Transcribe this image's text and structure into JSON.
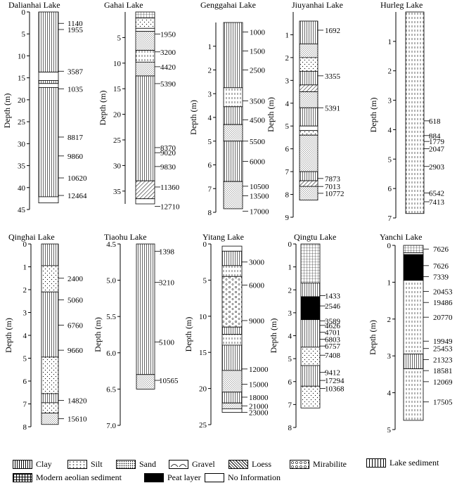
{
  "legend": [
    {
      "label": "Clay",
      "pattern": "clay"
    },
    {
      "label": "Silt",
      "pattern": "silt"
    },
    {
      "label": "Sand",
      "pattern": "sand"
    },
    {
      "label": "Gravel",
      "pattern": "gravel"
    },
    {
      "label": "Loess",
      "pattern": "loess"
    },
    {
      "label": "Mirabilite",
      "pattern": "mira"
    },
    {
      "label": "Lake sediment",
      "pattern": "lake"
    },
    {
      "label": "Modern aeolian sediment",
      "pattern": "aeol"
    },
    {
      "label": "Peat layer",
      "pattern": "peat"
    },
    {
      "label": "No Information",
      "pattern": "none"
    }
  ],
  "y_label": "Depth (m)",
  "cores": [
    {
      "name": "Dalianhai Lake",
      "ymin": 0,
      "ymax": 45,
      "ticks": [
        0,
        5,
        10,
        15,
        20,
        25,
        30,
        35,
        40,
        45
      ],
      "layers": [
        [
          0,
          13.7,
          "clay"
        ],
        [
          13.7,
          15.6,
          "none"
        ],
        [
          15.6,
          16.3,
          "clay"
        ],
        [
          16.3,
          17.2,
          "none"
        ],
        [
          17.2,
          42.1,
          "clay"
        ],
        [
          42.1,
          43.5,
          "none"
        ]
      ],
      "ages": [
        [
          2.6,
          "1140"
        ],
        [
          4.0,
          "1955"
        ],
        [
          13.5,
          "3587"
        ],
        [
          17.5,
          "1035"
        ],
        [
          28.5,
          "8817"
        ],
        [
          32.8,
          "9860"
        ],
        [
          37.8,
          "10620"
        ],
        [
          41.8,
          "12464"
        ]
      ]
    },
    {
      "name": "Gahai Lake",
      "ymin": 0,
      "ymax": 37.5,
      "ticks": [
        5,
        10,
        15,
        20,
        25,
        30,
        35
      ],
      "layers": [
        [
          0,
          1.2,
          "aeol"
        ],
        [
          1.2,
          3.2,
          "silt"
        ],
        [
          3.2,
          3.8,
          "none"
        ],
        [
          3.8,
          7.5,
          "sand"
        ],
        [
          7.5,
          9.8,
          "lake"
        ],
        [
          9.8,
          12.5,
          "sand"
        ],
        [
          12.5,
          33.0,
          "clay"
        ],
        [
          33.0,
          36.5,
          "loess"
        ],
        [
          36.5,
          37.5,
          "none"
        ]
      ],
      "ages": [
        [
          4.3,
          "1950"
        ],
        [
          7.8,
          "3200"
        ],
        [
          10.7,
          "4420"
        ],
        [
          14.0,
          "5390"
        ],
        [
          26.5,
          "8370"
        ],
        [
          27.5,
          "9020"
        ],
        [
          30.2,
          "9830"
        ],
        [
          34.2,
          "11360"
        ],
        [
          38.0,
          "12710"
        ]
      ]
    },
    {
      "name": "Genggahai Lake",
      "ymin": 0,
      "ymax": 8,
      "ticks": [
        1,
        2,
        3,
        4,
        5,
        6,
        7,
        8
      ],
      "layers": [
        [
          0,
          2.75,
          "clay"
        ],
        [
          2.75,
          3.55,
          "lake"
        ],
        [
          3.55,
          4.3,
          "clay"
        ],
        [
          4.3,
          5.0,
          "sand"
        ],
        [
          5.0,
          6.7,
          "clay"
        ],
        [
          6.7,
          7.85,
          "sand"
        ]
      ],
      "ages": [
        [
          0.4,
          "1000"
        ],
        [
          1.2,
          "1500"
        ],
        [
          2.0,
          "2500"
        ],
        [
          3.3,
          "3500"
        ],
        [
          4.1,
          "4500"
        ],
        [
          5.0,
          "5500"
        ],
        [
          5.85,
          "6000"
        ],
        [
          6.9,
          "10500"
        ],
        [
          7.3,
          "13500"
        ],
        [
          7.95,
          "17000"
        ]
      ]
    },
    {
      "name": "Jiuyanhai Lake",
      "ymin": 0,
      "ymax": 9,
      "ticks": [
        1,
        2,
        3,
        4,
        5,
        6,
        7,
        8,
        9
      ],
      "layers": [
        [
          0.4,
          1.4,
          "clay"
        ],
        [
          1.4,
          2.0,
          "sand"
        ],
        [
          2.0,
          2.6,
          "silt"
        ],
        [
          2.6,
          3.2,
          "clay"
        ],
        [
          3.2,
          3.5,
          "loess"
        ],
        [
          3.5,
          4.2,
          "sand"
        ],
        [
          4.2,
          5.0,
          "clay"
        ],
        [
          5.0,
          5.2,
          "none"
        ],
        [
          5.2,
          5.4,
          "silt"
        ],
        [
          5.4,
          7.0,
          "sand"
        ],
        [
          7.0,
          7.4,
          "clay"
        ],
        [
          7.4,
          7.65,
          "loess"
        ],
        [
          7.65,
          8.25,
          "sand"
        ]
      ],
      "ages": [
        [
          0.8,
          "1692"
        ],
        [
          2.8,
          "3355"
        ],
        [
          4.2,
          "5391"
        ],
        [
          7.3,
          "7873"
        ],
        [
          7.65,
          "7013"
        ],
        [
          7.95,
          "10772"
        ]
      ]
    },
    {
      "name": "Hurleg Lake",
      "ymin": 0,
      "ymax": 7,
      "ticks": [
        1,
        2,
        3,
        4,
        5,
        6,
        7
      ],
      "layers": [
        [
          0,
          6.85,
          "lake"
        ]
      ],
      "ages": [
        [
          3.7,
          "618"
        ],
        [
          4.2,
          "884"
        ],
        [
          4.4,
          "1779"
        ],
        [
          4.65,
          "2047"
        ],
        [
          5.25,
          "2903"
        ],
        [
          6.15,
          "6542"
        ],
        [
          6.45,
          "7413"
        ]
      ]
    },
    {
      "name": "Qinghai Lake",
      "ymin": 0,
      "ymax": 8,
      "ticks": [
        0,
        1,
        2,
        3,
        4,
        5,
        6,
        7,
        8
      ],
      "layers": [
        [
          0,
          0.95,
          "clay"
        ],
        [
          0.95,
          2.1,
          "silt"
        ],
        [
          2.1,
          4.95,
          "clay"
        ],
        [
          4.95,
          6.55,
          "silt"
        ],
        [
          6.55,
          6.95,
          "clay"
        ],
        [
          6.95,
          7.4,
          "silt"
        ],
        [
          7.4,
          7.9,
          "sand"
        ]
      ],
      "ages": [
        [
          1.5,
          "2400"
        ],
        [
          2.45,
          "5060"
        ],
        [
          3.55,
          "6760"
        ],
        [
          4.65,
          "9660"
        ],
        [
          6.85,
          "14820"
        ],
        [
          7.65,
          "15610"
        ]
      ]
    },
    {
      "name": "Tiaohu Lake",
      "ymin": 4.5,
      "ymax": 7.0,
      "ticks": [
        4.5,
        5.0,
        5.5,
        6.0,
        6.5,
        7.0
      ],
      "ticklabels": [
        "4.5",
        "5.0",
        "5.5",
        "6.0",
        "6.5",
        "7.0"
      ],
      "layers": [
        [
          4.5,
          6.3,
          "clay"
        ],
        [
          6.3,
          6.5,
          "sand"
        ]
      ],
      "ages": [
        [
          4.6,
          "1398"
        ],
        [
          5.03,
          "3210"
        ],
        [
          5.85,
          "5100"
        ],
        [
          6.38,
          "10565"
        ]
      ]
    },
    {
      "name": "Yitang Lake",
      "ymin": 0,
      "ymax": 25,
      "ticks": [
        0,
        5,
        10,
        15,
        20,
        25
      ],
      "layers": [
        [
          0.3,
          1.0,
          "none"
        ],
        [
          1.0,
          3.0,
          "clay"
        ],
        [
          3.0,
          4.5,
          "lake"
        ],
        [
          4.5,
          11.5,
          "mira"
        ],
        [
          11.5,
          12.5,
          "clay"
        ],
        [
          12.5,
          14.0,
          "lake"
        ],
        [
          14.0,
          17.5,
          "clay"
        ],
        [
          17.5,
          20.5,
          "sand"
        ],
        [
          20.5,
          22.0,
          "clay"
        ],
        [
          22.0,
          22.8,
          "sand"
        ],
        [
          22.8,
          23.3,
          "none"
        ]
      ],
      "ages": [
        [
          2.5,
          "3000"
        ],
        [
          5.7,
          "6000"
        ],
        [
          10.6,
          "9000"
        ],
        [
          17.3,
          "12000"
        ],
        [
          19.4,
          "15000"
        ],
        [
          21.2,
          "18000"
        ],
        [
          22.4,
          "21000"
        ],
        [
          23.3,
          "23000"
        ]
      ]
    },
    {
      "name": "Qingtu Lake",
      "ymin": 0,
      "ymax": 8,
      "ticks": [
        0,
        1,
        2,
        3,
        4,
        5,
        6,
        7,
        8
      ],
      "layers": [
        [
          0,
          1.7,
          "aeol"
        ],
        [
          1.7,
          2.3,
          "clay"
        ],
        [
          2.3,
          3.3,
          "peat"
        ],
        [
          3.3,
          4.5,
          "clay"
        ],
        [
          4.5,
          5.3,
          "silt"
        ],
        [
          5.3,
          6.2,
          "clay"
        ],
        [
          6.2,
          7.15,
          "silt"
        ]
      ],
      "ages": [
        [
          2.25,
          "1433"
        ],
        [
          2.7,
          "2546"
        ],
        [
          3.35,
          "3589"
        ],
        [
          3.55,
          "4626"
        ],
        [
          3.85,
          "4701"
        ],
        [
          4.15,
          "6803"
        ],
        [
          4.45,
          "6757"
        ],
        [
          4.85,
          "7408"
        ],
        [
          5.6,
          "9412"
        ],
        [
          5.95,
          "17294"
        ],
        [
          6.3,
          "10368"
        ]
      ]
    },
    {
      "name": "Yanchi Lake",
      "ymin": 0,
      "ymax": 5,
      "ticks": [
        0,
        1,
        2,
        3,
        4,
        5
      ],
      "layers": [
        [
          0,
          0.2,
          "aeol"
        ],
        [
          0.2,
          0.25,
          "none"
        ],
        [
          0.25,
          0.95,
          "peat"
        ],
        [
          0.95,
          2.95,
          "lake"
        ],
        [
          2.95,
          3.35,
          "clay"
        ],
        [
          3.35,
          4.75,
          "lake"
        ]
      ],
      "ages": [
        [
          0.1,
          "7626"
        ],
        [
          0.55,
          "7626"
        ],
        [
          0.85,
          "7339"
        ],
        [
          1.25,
          "20453"
        ],
        [
          1.55,
          "19486"
        ],
        [
          1.95,
          "20770"
        ],
        [
          2.6,
          "19949"
        ],
        [
          2.8,
          "25453"
        ],
        [
          3.1,
          "21323"
        ],
        [
          3.4,
          "18581"
        ],
        [
          3.7,
          "12069"
        ],
        [
          4.25,
          "17505"
        ]
      ]
    }
  ]
}
